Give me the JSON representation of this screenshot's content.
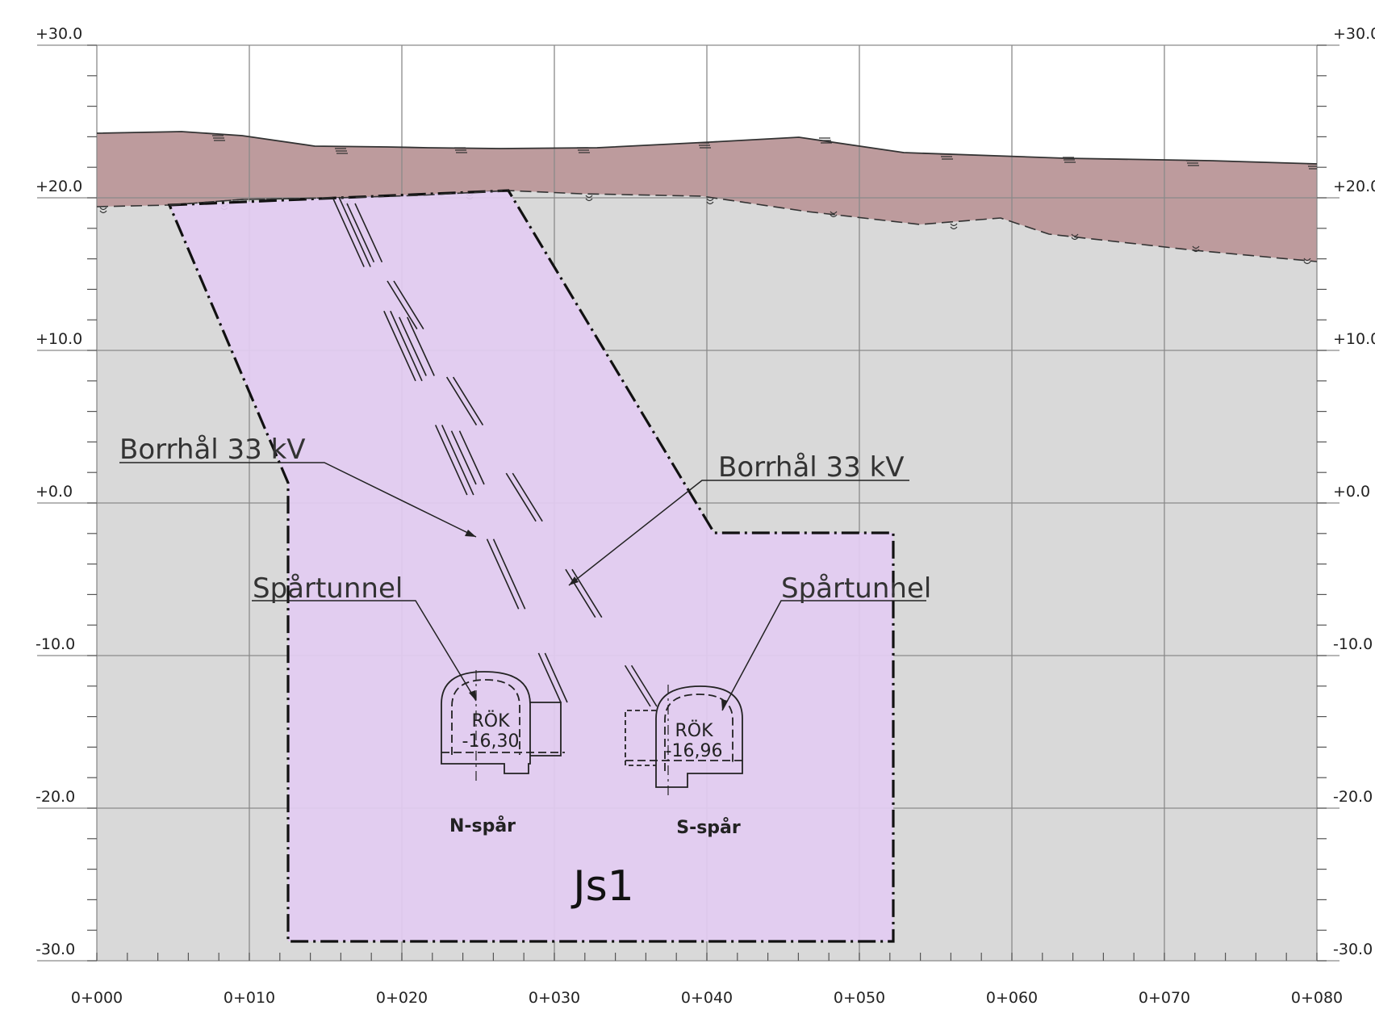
{
  "elevation_labels": [
    "+30.0",
    "+20.0",
    "+10.0",
    "+0.0",
    "-10.0",
    "-20.0",
    "-30.0"
  ],
  "chainage_labels": [
    "0+000",
    "0+010",
    "0+020",
    "0+030",
    "0+040",
    "0+050",
    "0+060",
    "0+070",
    "0+080"
  ],
  "callouts": {
    "borrhal_left": "Borrhål 33 kV",
    "borrhal_right": "Borrhål 33 kV",
    "spartunnel_left": "Spårtunnel",
    "spartunnel_right": "Spårtunnel"
  },
  "tunnels": {
    "north": {
      "rok_label": "RÖK",
      "rok_value": "-16,30",
      "track_label": "N-spår"
    },
    "south": {
      "rok_label": "RÖK",
      "rok_value": "-16,96",
      "track_label": "S-spår"
    }
  },
  "zone_label": "Js1",
  "colors": {
    "soil": "#bd9b9d",
    "rock": "#d9d9d9",
    "zone": "#e3ccf2",
    "grid": "#8a8a8a"
  }
}
